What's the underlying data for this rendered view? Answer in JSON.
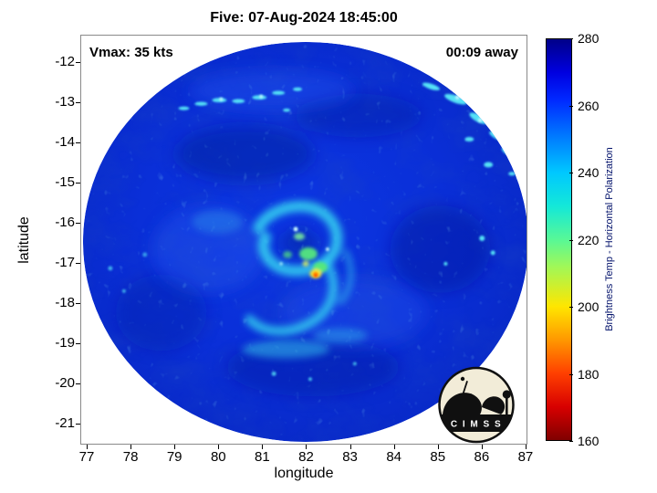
{
  "chart_data": {
    "type": "heatmap",
    "title": "Five: 07-Aug-2024 18:45:00",
    "xlabel": "longitude",
    "ylabel": "latitude",
    "xlim": [
      76.85,
      87.05
    ],
    "ylim": [
      -21.5,
      -11.3
    ],
    "xticks": [
      77,
      78,
      79,
      80,
      81,
      82,
      83,
      84,
      85,
      86,
      87
    ],
    "yticks": [
      -12,
      -13,
      -14,
      -15,
      -16,
      -17,
      -18,
      -19,
      -20,
      -21
    ],
    "xtick_labels": [
      "77",
      "78",
      "79",
      "80",
      "81",
      "82",
      "83",
      "84",
      "85",
      "86",
      "87"
    ],
    "ytick_labels": [
      "-12",
      "-13",
      "-14",
      "-15",
      "-16",
      "-17",
      "-18",
      "-19",
      "-20",
      "-21"
    ],
    "annotations": {
      "vmax": "Vmax: 35 kts",
      "time_away": "00:09 away"
    },
    "colorbar": {
      "label": "Brightness Temp - Horizontal Polarization",
      "min": 160,
      "max": 280,
      "tick_labels_top_to_bottom": [
        "280",
        "260",
        "240",
        "220",
        "200",
        "180",
        "160"
      ],
      "colormap": "jet-reversed",
      "key_colors": {
        "280": "#000088",
        "260": "#0028ff",
        "240": "#00c8ff",
        "220": "#58f896",
        "200": "#ffe600",
        "180": "#ff4000",
        "160": "#800000"
      }
    },
    "description": "Circular microwave satellite swath over tropical cyclone Five; background brightness temperatures ~255-265 K (blue) with mottled darker patches, scattered cyan speckles (~240 K) in NE quadrant and along lat -13, and a comma-shaped convective band near the center reaching ~195-215 K (green/yellow with small orange core).",
    "features": [
      {
        "lon": 82.2,
        "lat": -17.2,
        "tb_K": 195,
        "note": "convective core (yellow-orange)"
      },
      {
        "lon": 81.9,
        "lat": -16.9,
        "tb_K": 215,
        "note": "green patch adjacent to core"
      },
      {
        "lon": 81.5,
        "lat": -18.3,
        "tb_K": 235,
        "note": "cyan comma-tail band"
      },
      {
        "lon": 85.5,
        "lat": -13.5,
        "tb_K": 240,
        "note": "speckled cyan cluster northeast"
      },
      {
        "lon": 80.0,
        "lat": -13.1,
        "tb_K": 242,
        "note": "thin cyan streak chain"
      }
    ],
    "background_tb_K": 260
  },
  "logo": {
    "text": "C I M S S"
  }
}
